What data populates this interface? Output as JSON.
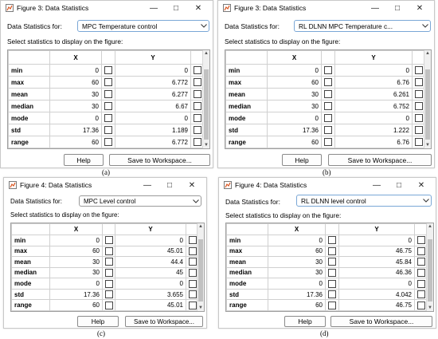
{
  "window_controls": {
    "minimize": "—",
    "maximize": "□",
    "close": "✕"
  },
  "common": {
    "data_stats_for": "Data Statistics for:",
    "select_prompt": "Select statistics to display on the figure:",
    "col_x": "X",
    "col_y": "Y",
    "help": "Help",
    "save": "Save to Workspace..."
  },
  "panels": [
    {
      "title": "Figure 3: Data Statistics",
      "dataset": "MPC Temperature control",
      "caption": "(a)",
      "rows": [
        {
          "stat": "min",
          "x": "0",
          "y": "0"
        },
        {
          "stat": "max",
          "x": "60",
          "y": "6.772"
        },
        {
          "stat": "mean",
          "x": "30",
          "y": "6.277"
        },
        {
          "stat": "median",
          "x": "30",
          "y": "6.67"
        },
        {
          "stat": "mode",
          "x": "0",
          "y": "0"
        },
        {
          "stat": "std",
          "x": "17.36",
          "y": "1.189"
        },
        {
          "stat": "range",
          "x": "60",
          "y": "6.772"
        }
      ]
    },
    {
      "title": "Figure 3: Data Statistics",
      "dataset": "RL DLNN MPC Temperature c...",
      "caption": "(b)",
      "rows": [
        {
          "stat": "min",
          "x": "0",
          "y": "0"
        },
        {
          "stat": "max",
          "x": "60",
          "y": "6.76"
        },
        {
          "stat": "mean",
          "x": "30",
          "y": "6.261"
        },
        {
          "stat": "median",
          "x": "30",
          "y": "6.752"
        },
        {
          "stat": "mode",
          "x": "0",
          "y": "0"
        },
        {
          "stat": "std",
          "x": "17.36",
          "y": "1.222"
        },
        {
          "stat": "range",
          "x": "60",
          "y": "6.76"
        }
      ]
    },
    {
      "title": "Figure 4: Data Statistics",
      "dataset": "MPC Level control",
      "caption": "(c)",
      "rows": [
        {
          "stat": "min",
          "x": "0",
          "y": "0"
        },
        {
          "stat": "max",
          "x": "60",
          "y": "45.01"
        },
        {
          "stat": "mean",
          "x": "30",
          "y": "44.4"
        },
        {
          "stat": "median",
          "x": "30",
          "y": "45"
        },
        {
          "stat": "mode",
          "x": "0",
          "y": "0"
        },
        {
          "stat": "std",
          "x": "17.36",
          "y": "3.655"
        },
        {
          "stat": "range",
          "x": "60",
          "y": "45.01"
        }
      ]
    },
    {
      "title": "Figure 4: Data Statistics",
      "dataset": "RL DLNN level control",
      "caption": "(d)",
      "rows": [
        {
          "stat": "min",
          "x": "0",
          "y": "0"
        },
        {
          "stat": "max",
          "x": "60",
          "y": "46.75"
        },
        {
          "stat": "mean",
          "x": "30",
          "y": "45.84"
        },
        {
          "stat": "median",
          "x": "30",
          "y": "46.36"
        },
        {
          "stat": "mode",
          "x": "0",
          "y": "0"
        },
        {
          "stat": "std",
          "x": "17.36",
          "y": "4.042"
        },
        {
          "stat": "range",
          "x": "60",
          "y": "46.75"
        }
      ]
    }
  ]
}
